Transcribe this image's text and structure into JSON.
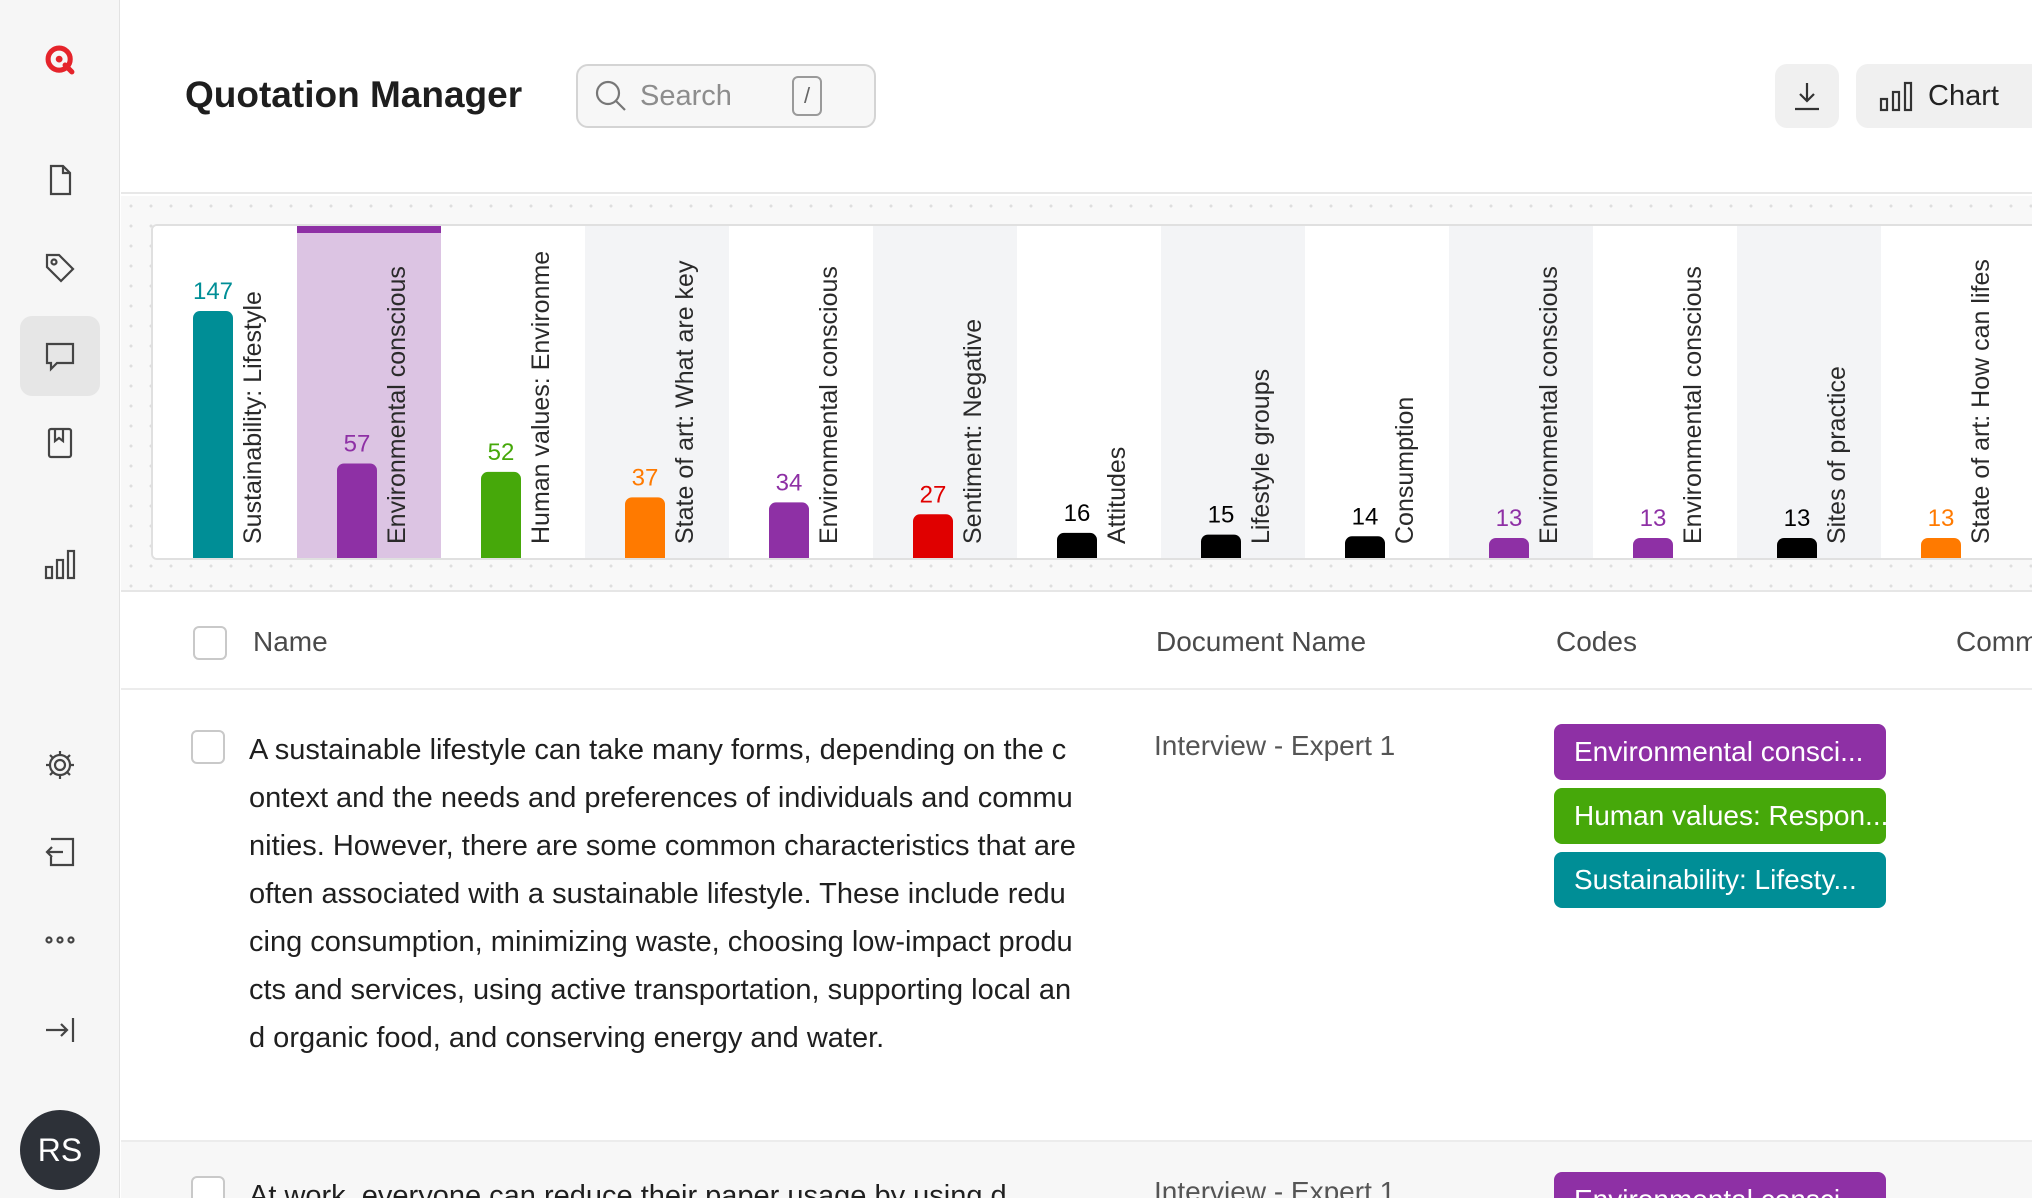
{
  "app": {
    "title": "Quotation Manager",
    "search_placeholder": "Search",
    "search_shortcut": "/",
    "chart_button_label": "Chart"
  },
  "sidebar": {
    "icons": [
      "logo-icon",
      "document-icon",
      "tag-icon",
      "comment-icon",
      "bookmark-icon",
      "bar-chart-icon",
      "gear-icon",
      "import-icon",
      "more-icon",
      "expand-sidebar-icon"
    ],
    "active": "comment-icon",
    "avatar_initials": "RS"
  },
  "chart_data": {
    "type": "bar",
    "categories": [
      "Sustainability: Lifestyle",
      "Environmental conscious",
      "Human values: Environme",
      "State of art: What are key",
      "Environmental conscious",
      "Sentiment: Negative",
      "Attitudes",
      "Lifestyle groups",
      "Consumption",
      "Environmental conscious",
      "Environmental conscious",
      "Sites of practice",
      "State of art: How can lifes"
    ],
    "values": [
      147,
      57,
      52,
      37,
      34,
      27,
      16,
      15,
      14,
      13,
      13,
      13,
      13
    ],
    "colors": [
      "#008e96",
      "#8e30a5",
      "#46a80a",
      "#ff7a00",
      "#8e30a5",
      "#e00000",
      "#000000",
      "#000000",
      "#000000",
      "#8e30a5",
      "#8e30a5",
      "#000000",
      "#ff7a00"
    ],
    "label_colors": [
      "#008e96",
      "#8e30a5",
      "#46a80a",
      "#ff7a00",
      "#8e30a5",
      "#e00000",
      "#000000",
      "#000000",
      "#000000",
      "#8e30a5",
      "#8e30a5",
      "#000000",
      "#ff7a00"
    ],
    "selected_index": 1,
    "selected_color": "#dcc4e3",
    "ylim": [
      0,
      160
    ]
  },
  "table": {
    "columns": {
      "name": "Name",
      "document": "Document Name",
      "codes": "Codes",
      "comments": "Comm"
    },
    "rows": [
      {
        "text": "A sustainable lifestyle can take many forms, depending on the context and the needs and preferences of individuals and communities. However, there are some common characteristics that are often associated with a sustainable lifestyle. These include reducing consumption, minimizing waste, choosing low-impact products and services, using active transportation, supporting local and organic food, and conserving energy and water.",
        "document": "Interview - Expert 1",
        "codes": [
          {
            "label": "Environmental consci...",
            "color": "#8e30a5"
          },
          {
            "label": "Human values: Respon...",
            "color": "#46a80a"
          },
          {
            "label": "Sustainability: Lifesty...",
            "color": "#008e96"
          }
        ]
      },
      {
        "text": "At work, everyone can reduce their paper usage by using d",
        "document": "Interview - Expert 1",
        "codes": [
          {
            "label": "Environmental consci...",
            "color": "#8e30a5"
          }
        ]
      }
    ]
  }
}
